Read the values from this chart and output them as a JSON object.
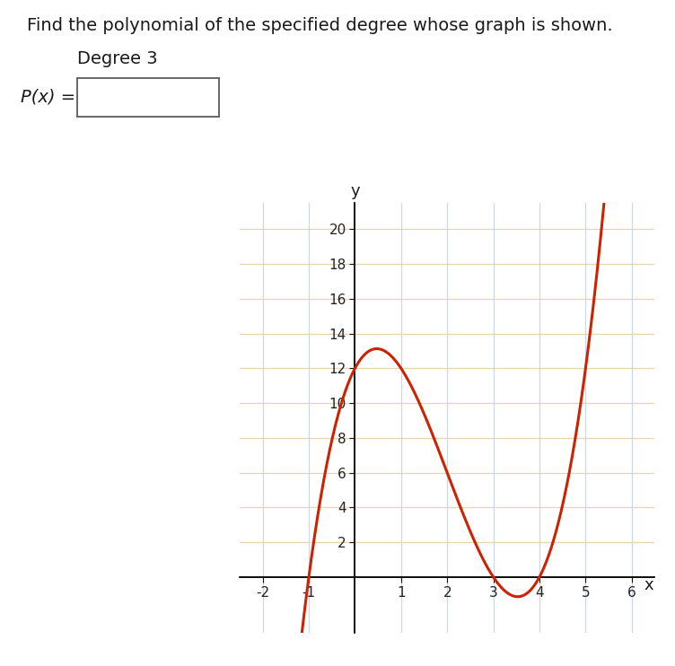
{
  "title_text": "Find the polynomial of the specified degree whose graph is shown.",
  "degree_text": "Degree 3",
  "label_text": "P(x) =",
  "polynomial_coeffs": [
    1,
    -6,
    5,
    12
  ],
  "x_min": -2.5,
  "x_max": 6.5,
  "y_min": -3.2,
  "y_max": 21.5,
  "x_ticks": [
    -2,
    -1,
    1,
    2,
    3,
    4,
    5,
    6
  ],
  "y_ticks": [
    2,
    4,
    6,
    8,
    10,
    12,
    14,
    16,
    18,
    20
  ],
  "curve_color": "#cc2200",
  "curve_linewidth": 2.2,
  "h_grid_color": "#e8d4b0",
  "v_grid_color": "#ccd8e8",
  "axis_color": "#111111",
  "background_color": "#ffffff",
  "plot_x_start": -1.65,
  "plot_x_end": 5.45,
  "xlabel": "x",
  "ylabel": "y",
  "title_fontsize": 14,
  "label_fontsize": 14,
  "tick_fontsize": 11
}
